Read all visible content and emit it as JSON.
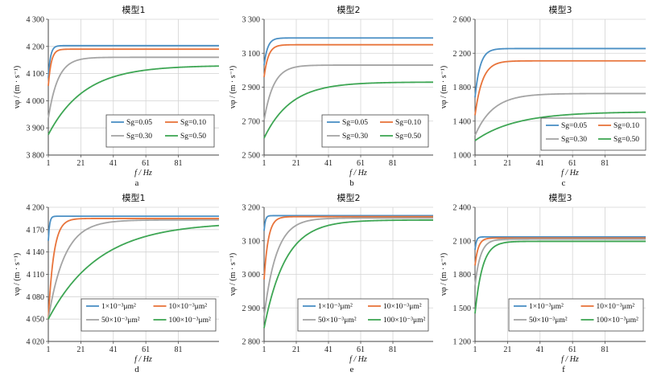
{
  "colors": {
    "blue": "#4a8fc4",
    "orange": "#e8743b",
    "gray": "#a4a4a4",
    "green": "#3ea654"
  },
  "chart_data": [
    {
      "panel": "a",
      "title": "模型1",
      "type": "line",
      "xlabel": "f / Hz",
      "ylabel": "vφ / (m · s⁻¹)",
      "xlim": [
        1,
        106
      ],
      "ylim": [
        3800,
        4300
      ],
      "xticks": [
        1,
        21,
        41,
        61,
        81
      ],
      "xtick_labels": [
        "1",
        "21",
        "41",
        "61",
        "81"
      ],
      "yticks": [
        3800,
        3900,
        4000,
        4100,
        4200,
        4300
      ],
      "ytick_labels": [
        "3 800",
        "3 900",
        "4 000",
        "4 100",
        "4 200",
        "4 300"
      ],
      "legend_rows": [
        [
          "Sg=0.05",
          "Sg=0.10"
        ],
        [
          "Sg=0.30",
          "Sg=0.50"
        ]
      ],
      "series": [
        {
          "name": "Sg=0.05",
          "color": "blue",
          "y0": 4085,
          "yinf": 4203,
          "k": 0.75
        },
        {
          "name": "Sg=0.10",
          "color": "orange",
          "y0": 4055,
          "yinf": 4190,
          "k": 0.55
        },
        {
          "name": "Sg=0.30",
          "color": "gray",
          "y0": 3935,
          "yinf": 4160,
          "k": 0.17
        },
        {
          "name": "Sg=0.50",
          "color": "green",
          "y0": 3875,
          "yinf": 4130,
          "k": 0.045
        }
      ]
    },
    {
      "panel": "b",
      "title": "模型2",
      "type": "line",
      "xlabel": "f / Hz",
      "ylabel": "vφ / (m · s⁻¹)",
      "xlim": [
        1,
        106
      ],
      "ylim": [
        2500,
        3300
      ],
      "xticks": [
        1,
        21,
        41,
        61,
        81
      ],
      "xtick_labels": [
        "1",
        "21",
        "41",
        "61",
        "81"
      ],
      "yticks": [
        2500,
        2700,
        2900,
        3100,
        3300
      ],
      "ytick_labels": [
        "2 500",
        "2 700",
        "2 900",
        "3 100",
        "3 300"
      ],
      "legend_rows": [
        [
          "Sg=0.05",
          "Sg=0.10"
        ],
        [
          "Sg=0.30",
          "Sg=0.50"
        ]
      ],
      "series": [
        {
          "name": "Sg=0.05",
          "color": "blue",
          "y0": 3030,
          "yinf": 3190,
          "k": 0.45
        },
        {
          "name": "Sg=0.10",
          "color": "orange",
          "y0": 2960,
          "yinf": 3150,
          "k": 0.38
        },
        {
          "name": "Sg=0.30",
          "color": "gray",
          "y0": 2705,
          "yinf": 3030,
          "k": 0.17
        },
        {
          "name": "Sg=0.50",
          "color": "green",
          "y0": 2600,
          "yinf": 2930,
          "k": 0.06
        }
      ]
    },
    {
      "panel": "c",
      "title": "模型3",
      "type": "line",
      "xlabel": "f / Hz",
      "ylabel": "vφ / (m · s⁻¹)",
      "xlim": [
        1,
        106
      ],
      "ylim": [
        1000,
        2600
      ],
      "xticks": [
        1,
        21,
        41,
        61,
        81
      ],
      "xtick_labels": [
        "1",
        "21",
        "41",
        "61",
        "81"
      ],
      "yticks": [
        1000,
        1400,
        1800,
        2200,
        2600
      ],
      "ytick_labels": [
        "1 000",
        "1 400",
        "1 800",
        "2 200",
        "2 600"
      ],
      "legend_rows": [
        [
          "Sg=0.05",
          "Sg=0.10"
        ],
        [
          "Sg=0.30",
          "Sg=0.50"
        ]
      ],
      "series": [
        {
          "name": "Sg=0.05",
          "color": "blue",
          "y0": 1680,
          "yinf": 2255,
          "k": 0.32
        },
        {
          "name": "Sg=0.10",
          "color": "orange",
          "y0": 1470,
          "yinf": 2110,
          "k": 0.22
        },
        {
          "name": "Sg=0.30",
          "color": "gray",
          "y0": 1230,
          "yinf": 1725,
          "k": 0.09
        },
        {
          "name": "Sg=0.50",
          "color": "green",
          "y0": 1170,
          "yinf": 1510,
          "k": 0.04
        }
      ]
    },
    {
      "panel": "d",
      "title": "模型1",
      "type": "line",
      "xlabel": "f / Hz",
      "ylabel": "vφ / (m · s⁻¹)",
      "xlim": [
        1,
        106
      ],
      "ylim": [
        4020,
        4200
      ],
      "xticks": [
        1,
        21,
        41,
        61,
        81
      ],
      "xtick_labels": [
        "1",
        "21",
        "41",
        "61",
        "81"
      ],
      "yticks": [
        4020,
        4050,
        4080,
        4110,
        4140,
        4170,
        4200
      ],
      "ytick_labels": [
        "4 020",
        "4 050",
        "4 080",
        "4 110",
        "4 140",
        "4 170",
        "4 200"
      ],
      "legend_rows": [
        [
          "1×10⁻³μm²",
          "10×10⁻³μm²"
        ],
        [
          "50×10⁻³μm²",
          "100×10⁻³μm²"
        ]
      ],
      "series": [
        {
          "name": "1×10⁻³μm²",
          "color": "blue",
          "y0": 4155,
          "yinf": 4188,
          "k": 1.3
        },
        {
          "name": "10×10⁻³μm²",
          "color": "orange",
          "y0": 4050,
          "yinf": 4185,
          "k": 0.3
        },
        {
          "name": "50×10⁻³μm²",
          "color": "gray",
          "y0": 4050,
          "yinf": 4183,
          "k": 0.1
        },
        {
          "name": "100×10⁻³μm²",
          "color": "green",
          "y0": 4050,
          "yinf": 4180,
          "k": 0.032
        }
      ]
    },
    {
      "panel": "e",
      "title": "模型2",
      "type": "line",
      "xlabel": "f / Hz",
      "ylabel": "vφ / (m · s⁻¹)",
      "xlim": [
        1,
        106
      ],
      "ylim": [
        2800,
        3200
      ],
      "xticks": [
        1,
        21,
        41,
        61,
        81
      ],
      "xtick_labels": [
        "1",
        "21",
        "41",
        "61",
        "81"
      ],
      "yticks": [
        2800,
        2900,
        3000,
        3100,
        3200
      ],
      "ytick_labels": [
        "2 800",
        "2 900",
        "3 000",
        "3 100",
        "3 200"
      ],
      "legend_rows": [
        [
          "1×10⁻³μm²",
          "10×10⁻³μm²"
        ],
        [
          "50×10⁻³μm²",
          "100×10⁻³μm²"
        ]
      ],
      "series": [
        {
          "name": "1×10⁻³μm²",
          "color": "blue",
          "y0": 3130,
          "yinf": 3175,
          "k": 1.3
        },
        {
          "name": "10×10⁻³μm²",
          "color": "orange",
          "y0": 2985,
          "yinf": 3172,
          "k": 0.38
        },
        {
          "name": "50×10⁻³μm²",
          "color": "gray",
          "y0": 2875,
          "yinf": 3168,
          "k": 0.13
        },
        {
          "name": "100×10⁻³μm²",
          "color": "green",
          "y0": 2840,
          "yinf": 3162,
          "k": 0.075
        }
      ]
    },
    {
      "panel": "f",
      "title": "模型3",
      "type": "line",
      "xlabel": "f / Hz",
      "ylabel": "vφ / (m · s⁻¹)",
      "xlim": [
        1,
        106
      ],
      "ylim": [
        1200,
        2400
      ],
      "xticks": [
        1,
        21,
        41,
        61,
        81
      ],
      "xtick_labels": [
        "1",
        "21",
        "41",
        "61",
        "81"
      ],
      "yticks": [
        1200,
        1500,
        1800,
        2100,
        2400
      ],
      "ytick_labels": [
        "1 200",
        "1 500",
        "1 800",
        "2 100",
        "2 400"
      ],
      "legend_rows": [
        [
          "1×10⁻³μm²",
          "10×10⁻³μm²"
        ],
        [
          "50×10⁻³μm²",
          "100×10⁻³μm²"
        ]
      ],
      "series": [
        {
          "name": "1×10⁻³μm²",
          "color": "blue",
          "y0": 2020,
          "yinf": 2135,
          "k": 1.2
        },
        {
          "name": "10×10⁻³μm²",
          "color": "orange",
          "y0": 1880,
          "yinf": 2125,
          "k": 0.5
        },
        {
          "name": "50×10⁻³μm²",
          "color": "gray",
          "y0": 1700,
          "yinf": 2115,
          "k": 0.3
        },
        {
          "name": "100×10⁻³μm²",
          "color": "green",
          "y0": 1450,
          "yinf": 2095,
          "k": 0.22
        }
      ]
    }
  ]
}
